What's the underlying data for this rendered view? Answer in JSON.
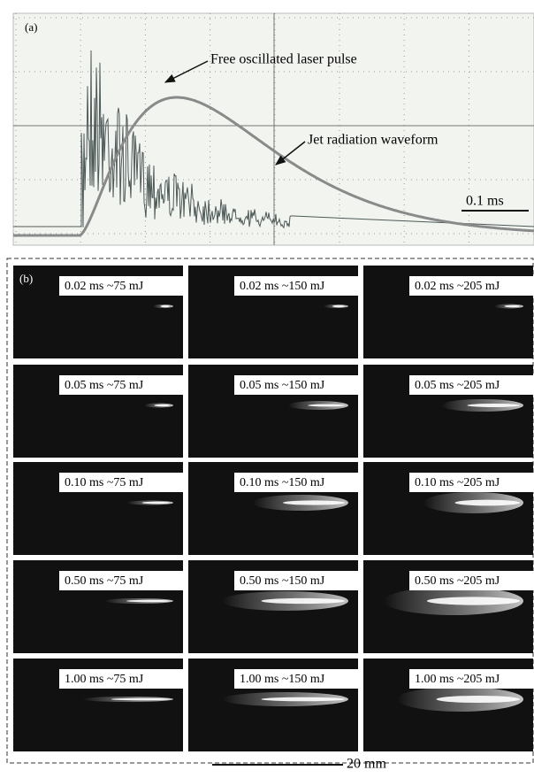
{
  "panel_a": {
    "label": "(a)",
    "annotations": [
      "Free oscillated laser pulse",
      "Jet radiation waveform"
    ],
    "scale_bar": "0.1 ms"
  },
  "panel_b": {
    "label": "(b)",
    "rows": [
      [
        "0.02 ms  ~75 mJ",
        "0.02 ms  ~150 mJ",
        "0.02 ms  ~205 mJ"
      ],
      [
        "0.05 ms  ~75 mJ",
        "0.05 ms  ~150 mJ",
        "0.05 ms  ~205 mJ"
      ],
      [
        "0.10 ms  ~75 mJ",
        "0.10 ms  ~150 mJ",
        "0.10 ms  ~205 mJ"
      ],
      [
        "0.50 ms  ~75 mJ",
        "0.50 ms  ~150 mJ",
        "0.50 ms  ~205 mJ"
      ],
      [
        "1.00 ms  ~75 mJ",
        "1.00 ms  ~150 mJ",
        "1.00 ms  ~205 mJ"
      ]
    ],
    "scale_bar": "20 mm"
  }
}
